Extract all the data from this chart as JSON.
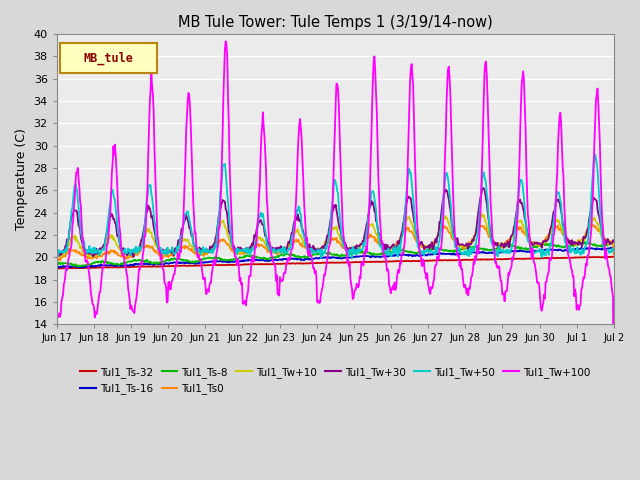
{
  "title": "MB Tule Tower: Tule Temps 1 (3/19/14-now)",
  "ylabel": "Temperature (C)",
  "ylim": [
    14,
    40
  ],
  "yticks": [
    14,
    16,
    18,
    20,
    22,
    24,
    26,
    28,
    30,
    32,
    34,
    36,
    38,
    40
  ],
  "fig_bg": "#d8d8d8",
  "plot_bg": "#ebebeb",
  "grid_color": "#ffffff",
  "legend_box_label": "MB_tule",
  "legend_box_text_color": "#8b0000",
  "legend_box_bg": "#ffffc0",
  "legend_box_border": "#b8860b",
  "series": [
    {
      "label": "Tul1_Ts-32",
      "color": "#cc0000",
      "lw": 1.3
    },
    {
      "label": "Tul1_Ts-16",
      "color": "#0000cc",
      "lw": 1.3
    },
    {
      "label": "Tul1_Ts-8",
      "color": "#00bb00",
      "lw": 1.3
    },
    {
      "label": "Tul1_Ts0",
      "color": "#ff8800",
      "lw": 1.3
    },
    {
      "label": "Tul1_Tw+10",
      "color": "#cccc00",
      "lw": 1.3
    },
    {
      "label": "Tul1_Tw+30",
      "color": "#880088",
      "lw": 1.3
    },
    {
      "label": "Tul1_Tw+50",
      "color": "#00cccc",
      "lw": 1.3
    },
    {
      "label": "Tul1_Tw+100",
      "color": "#ff00ff",
      "lw": 1.3
    }
  ],
  "xtick_labels": [
    "Jun 17",
    "Jun 18",
    "Jun 19",
    "Jun 20",
    "Jun 21",
    "Jun 22",
    "Jun 23",
    "Jun 24",
    "Jun 25",
    "Jun 26",
    "Jun 27",
    "Jun 28",
    "Jun 29",
    "Jun 30",
    "Jul 1",
    "Jul 2"
  ],
  "num_days": 15,
  "pts_per_day": 48
}
